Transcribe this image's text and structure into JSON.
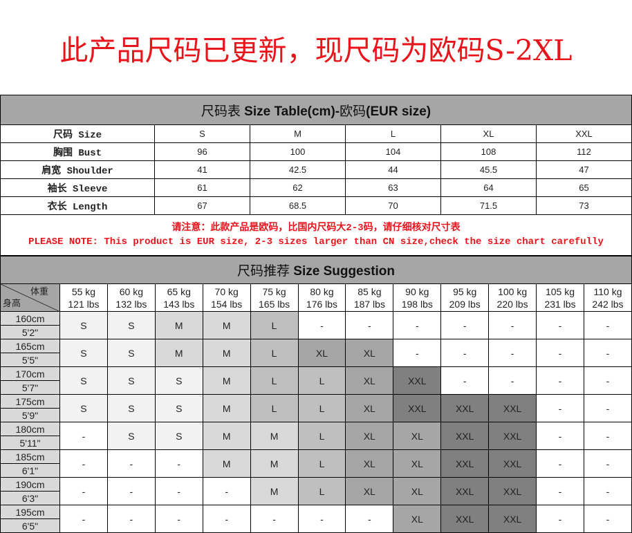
{
  "banner": "此产品尺码已更新，现尺码为欧码S-2XL",
  "size_table": {
    "title_cn": "尺码表 ",
    "title_en": "Size Table(cm)-",
    "title_cn2": "欧码",
    "title_en2": "(EUR size)",
    "rows": [
      {
        "label": "尺码 Size",
        "values": [
          "S",
          "M",
          "L",
          "XL",
          "XXL"
        ]
      },
      {
        "label": "胸围 Bust",
        "values": [
          "96",
          "100",
          "104",
          "108",
          "112"
        ]
      },
      {
        "label": "肩宽 Shoulder",
        "values": [
          "41",
          "42.5",
          "44",
          "45.5",
          "47"
        ]
      },
      {
        "label": "袖长 Sleeve",
        "values": [
          "61",
          "62",
          "63",
          "64",
          "65"
        ]
      },
      {
        "label": "衣长 Length",
        "values": [
          "67",
          "68.5",
          "70",
          "71.5",
          "73"
        ]
      }
    ],
    "note_cn": "请注意：此款产品是欧码，比国内尺码大2-3码，请仔细核对尺寸表",
    "note_en": "PLEASE NOTE: This product is EUR size, 2-3 sizes larger than CN size,check the size chart carefully"
  },
  "suggestion": {
    "title_cn": "尺码推荐 ",
    "title_en": "Size Suggestion",
    "corner_weight": "体重",
    "corner_height": "身高",
    "weights": [
      [
        "55 kg",
        "121 lbs"
      ],
      [
        "60 kg",
        "132 lbs"
      ],
      [
        "65 kg",
        "143 lbs"
      ],
      [
        "70 kg",
        "154 lbs"
      ],
      [
        "75 kg",
        "165 lbs"
      ],
      [
        "80 kg",
        "176 lbs"
      ],
      [
        "85 kg",
        "187 lbs"
      ],
      [
        "90 kg",
        "198 lbs"
      ],
      [
        "95 kg",
        "209 lbs"
      ],
      [
        "100 kg",
        "220 lbs"
      ],
      [
        "105 kg",
        "231 lbs"
      ],
      [
        "110 kg",
        "242 lbs"
      ]
    ],
    "rows": [
      {
        "cm": "160cm",
        "ft": "5'2\"",
        "sizes": [
          "S",
          "S",
          "M",
          "M",
          "L",
          "-",
          "-",
          "-",
          "-",
          "-",
          "-",
          "-"
        ]
      },
      {
        "cm": "165cm",
        "ft": "5'5\"",
        "sizes": [
          "S",
          "S",
          "M",
          "M",
          "L",
          "XL",
          "XL",
          "-",
          "-",
          "-",
          "-",
          "-"
        ]
      },
      {
        "cm": "170cm",
        "ft": "5'7\"",
        "sizes": [
          "S",
          "S",
          "S",
          "M",
          "L",
          "L",
          "XL",
          "XXL",
          "-",
          "-",
          "-",
          "-"
        ]
      },
      {
        "cm": "175cm",
        "ft": "5'9\"",
        "sizes": [
          "S",
          "S",
          "S",
          "M",
          "L",
          "L",
          "XL",
          "XXL",
          "XXL",
          "XXL",
          "-",
          "-"
        ]
      },
      {
        "cm": "180cm",
        "ft": "5'11\"",
        "sizes": [
          "-",
          "S",
          "S",
          "M",
          "M",
          "L",
          "XL",
          "XL",
          "XXL",
          "XXL",
          "-",
          "-"
        ]
      },
      {
        "cm": "185cm",
        "ft": "6'1\"",
        "sizes": [
          "-",
          "-",
          "-",
          "M",
          "M",
          "L",
          "XL",
          "XL",
          "XXL",
          "XXL",
          "-",
          "-"
        ]
      },
      {
        "cm": "190cm",
        "ft": "6'3\"",
        "sizes": [
          "-",
          "-",
          "-",
          "-",
          "M",
          "L",
          "XL",
          "XL",
          "XXL",
          "XXL",
          "-",
          "-"
        ]
      },
      {
        "cm": "195cm",
        "ft": "6'5\"",
        "sizes": [
          "-",
          "-",
          "-",
          "-",
          "-",
          "-",
          "-",
          "XL",
          "XXL",
          "XXL",
          "-",
          "-"
        ]
      }
    ],
    "colors": {
      "S": "#f2f2f2",
      "M": "#d9d9d9",
      "L": "#bfbfbf",
      "XL": "#a6a6a6",
      "XXL": "#808080",
      "-": "#ffffff"
    }
  }
}
